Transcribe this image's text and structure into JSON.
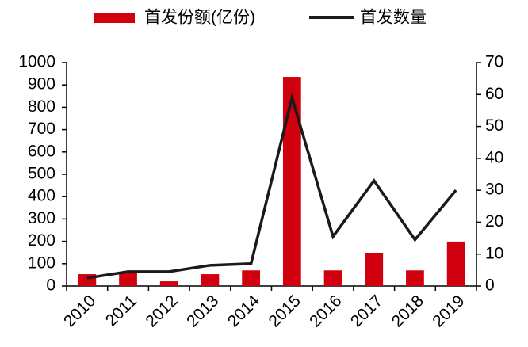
{
  "chart_data": {
    "type": "bar",
    "categories": [
      "2010",
      "2011",
      "2012",
      "2013",
      "2014",
      "2015",
      "2016",
      "2017",
      "2018",
      "2019"
    ],
    "series": [
      {
        "name": "首发份额(亿份)",
        "type": "bar",
        "color": "#d0000f",
        "values": [
          53,
          62,
          21,
          53,
          70,
          936,
          70,
          149,
          70,
          199
        ]
      },
      {
        "name": "首发数量",
        "type": "line",
        "axis": "y2",
        "color": "#1a1a1a",
        "values": [
          2.5,
          4.5,
          4.5,
          6.5,
          7,
          59,
          15.5,
          33,
          14.5,
          30
        ]
      }
    ],
    "ylim": [
      0,
      1000
    ],
    "yticks": [
      0,
      100,
      200,
      300,
      400,
      500,
      600,
      700,
      800,
      900,
      1000
    ],
    "y2lim": [
      0,
      70
    ],
    "y2ticks": [
      0,
      10,
      20,
      30,
      40,
      50,
      60,
      70
    ]
  }
}
